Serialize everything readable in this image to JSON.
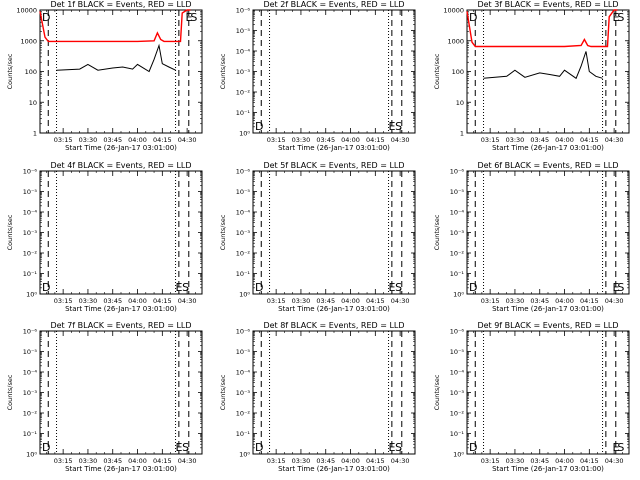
{
  "figure": {
    "xlabel": "Start Time (26-Jan-17 03:01:00)",
    "ylabel": "Counts/sec",
    "xtick_labels": [
      "03:15",
      "03:30",
      "03:45",
      "04:00",
      "04:15",
      "04:30"
    ],
    "colors": {
      "events": "#000000",
      "lld": "#ff0000",
      "axes": "#000000"
    }
  },
  "chart_data": [
    {
      "type": "line",
      "title": "Det 1f BLACK = Events, RED = LLD",
      "yscale": "log",
      "ylim": [
        1,
        10000
      ],
      "ytick_labels": [
        "1",
        "10",
        "100",
        "1000",
        "10000"
      ],
      "xlim": [
        "03:01",
        "04:39"
      ],
      "markers": [
        {
          "label": "D",
          "x": "03:01",
          "pos": "top-left"
        },
        {
          "label": "E",
          "x": "04:29",
          "pos": "top-right"
        },
        {
          "label": "S",
          "x": "04:32",
          "pos": "top-right"
        }
      ],
      "vlines": {
        "dashed": [
          "03:06",
          "04:25",
          "04:31"
        ],
        "dotted": [
          "03:11",
          "04:23"
        ]
      },
      "series": [
        {
          "name": "Events",
          "color": "#000000",
          "x": [
            "03:11",
            "03:25",
            "03:30",
            "03:36",
            "03:45",
            "03:51",
            "03:57",
            "04:00",
            "04:07",
            "04:10",
            "04:13",
            "04:15",
            "04:19",
            "04:23"
          ],
          "y": [
            110,
            120,
            170,
            110,
            130,
            140,
            120,
            170,
            100,
            250,
            700,
            180,
            140,
            110
          ]
        },
        {
          "name": "LLD",
          "color": "#ff0000",
          "x": [
            "03:01",
            "03:04",
            "03:06",
            "03:30",
            "04:00",
            "04:10",
            "04:12",
            "04:14",
            "04:16",
            "04:20",
            "04:26",
            "04:27",
            "04:30",
            "04:32"
          ],
          "y": [
            9000,
            1300,
            950,
            950,
            950,
            1000,
            1800,
            1100,
            950,
            950,
            950,
            8000,
            10000,
            10000
          ]
        }
      ]
    },
    {
      "type": "line",
      "title": "Det 2f BLACK = Events, RED = LLD",
      "yscale": "log",
      "ylim": [
        1,
        1e-06
      ],
      "ytick_labels": [
        "10⁰",
        "10⁻¹",
        "10⁻²",
        "10⁻³",
        "10⁻⁴",
        "10⁻⁵",
        "10⁻⁶"
      ],
      "xlim": [
        "03:01",
        "04:39"
      ],
      "markers": [
        {
          "label": "D",
          "x": "03:01",
          "pos": "bottom-left"
        },
        {
          "label": "E",
          "x": "04:23",
          "pos": "bottom-right"
        },
        {
          "label": "S",
          "x": "04:27",
          "pos": "bottom-right"
        }
      ],
      "vlines": {
        "dashed": [
          "03:06",
          "04:25",
          "04:31"
        ],
        "dotted": [
          "03:11",
          "04:23"
        ]
      },
      "series": []
    },
    {
      "type": "line",
      "title": "Det 3f BLACK = Events, RED = LLD",
      "yscale": "log",
      "ylim": [
        1,
        10000
      ],
      "ytick_labels": [
        "1",
        "10",
        "100",
        "1000",
        "10000"
      ],
      "xlim": [
        "03:01",
        "04:39"
      ],
      "markers": [
        {
          "label": "D",
          "x": "03:01",
          "pos": "top-left"
        },
        {
          "label": "E",
          "x": "04:29",
          "pos": "top-right"
        },
        {
          "label": "S",
          "x": "04:32",
          "pos": "top-right"
        }
      ],
      "vlines": {
        "dashed": [
          "03:06",
          "04:25",
          "04:31"
        ],
        "dotted": [
          "03:11",
          "04:23"
        ]
      },
      "series": [
        {
          "name": "Events",
          "color": "#000000",
          "x": [
            "03:11",
            "03:25",
            "03:30",
            "03:36",
            "03:45",
            "03:51",
            "03:57",
            "04:00",
            "04:07",
            "04:10",
            "04:13",
            "04:15",
            "04:19",
            "04:23"
          ],
          "y": [
            60,
            70,
            110,
            65,
            90,
            80,
            70,
            110,
            60,
            150,
            450,
            100,
            70,
            60
          ]
        },
        {
          "name": "LLD",
          "color": "#ff0000",
          "x": [
            "03:01",
            "03:04",
            "03:06",
            "03:30",
            "04:00",
            "04:10",
            "04:12",
            "04:14",
            "04:16",
            "04:20",
            "04:26",
            "04:27",
            "04:30",
            "04:32"
          ],
          "y": [
            9000,
            900,
            650,
            650,
            650,
            700,
            1100,
            700,
            650,
            650,
            650,
            6000,
            10000,
            10000
          ]
        }
      ]
    },
    {
      "type": "line",
      "title": "Det 4f BLACK = Events, RED = LLD",
      "yscale": "log",
      "ylim": [
        1,
        1e-06
      ],
      "ytick_labels": [
        "10⁰",
        "10⁻¹",
        "10⁻²",
        "10⁻³",
        "10⁻⁴",
        "10⁻⁵",
        "10⁻⁶"
      ],
      "xlim": [
        "03:01",
        "04:39"
      ],
      "markers": [
        {
          "label": "D",
          "x": "03:01",
          "pos": "bottom-left"
        },
        {
          "label": "E",
          "x": "04:23",
          "pos": "bottom-right"
        },
        {
          "label": "S",
          "x": "04:27",
          "pos": "bottom-right"
        }
      ],
      "vlines": {
        "dashed": [
          "03:06",
          "04:25",
          "04:31"
        ],
        "dotted": [
          "03:11",
          "04:23"
        ]
      },
      "series": []
    },
    {
      "type": "line",
      "title": "Det 5f BLACK = Events, RED = LLD",
      "yscale": "log",
      "ylim": [
        1,
        1e-06
      ],
      "ytick_labels": [
        "10⁰",
        "10⁻¹",
        "10⁻²",
        "10⁻³",
        "10⁻⁴",
        "10⁻⁵",
        "10⁻⁶"
      ],
      "xlim": [
        "03:01",
        "04:39"
      ],
      "markers": [
        {
          "label": "D",
          "x": "03:01",
          "pos": "bottom-left"
        },
        {
          "label": "E",
          "x": "04:23",
          "pos": "bottom-right"
        },
        {
          "label": "S",
          "x": "04:27",
          "pos": "bottom-right"
        }
      ],
      "vlines": {
        "dashed": [
          "03:06",
          "04:25",
          "04:31"
        ],
        "dotted": [
          "03:11",
          "04:23"
        ]
      },
      "series": []
    },
    {
      "type": "line",
      "title": "Det 6f BLACK = Events, RED = LLD",
      "yscale": "log",
      "ylim": [
        1,
        1e-06
      ],
      "ytick_labels": [
        "10⁰",
        "10⁻¹",
        "10⁻²",
        "10⁻³",
        "10⁻⁴",
        "10⁻⁵",
        "10⁻⁶"
      ],
      "xlim": [
        "03:01",
        "04:39"
      ],
      "markers": [
        {
          "label": "D",
          "x": "03:01",
          "pos": "bottom-left"
        },
        {
          "label": "E",
          "x": "04:29",
          "pos": "bottom-right"
        },
        {
          "label": "S",
          "x": "04:32",
          "pos": "bottom-right"
        }
      ],
      "vlines": {
        "dashed": [
          "03:06",
          "04:25",
          "04:31"
        ],
        "dotted": [
          "03:11",
          "04:23"
        ]
      },
      "series": []
    },
    {
      "type": "line",
      "title": "Det 7f BLACK = Events, RED = LLD",
      "yscale": "log",
      "ylim": [
        1,
        1e-06
      ],
      "ytick_labels": [
        "10⁰",
        "10⁻¹",
        "10⁻²",
        "10⁻³",
        "10⁻⁴",
        "10⁻⁵",
        "10⁻⁶"
      ],
      "xlim": [
        "03:01",
        "04:39"
      ],
      "markers": [
        {
          "label": "D",
          "x": "03:01",
          "pos": "bottom-left"
        },
        {
          "label": "E",
          "x": "04:23",
          "pos": "bottom-right"
        },
        {
          "label": "S",
          "x": "04:27",
          "pos": "bottom-right"
        }
      ],
      "vlines": {
        "dashed": [
          "03:06",
          "04:25",
          "04:31"
        ],
        "dotted": [
          "03:11",
          "04:23"
        ]
      },
      "series": []
    },
    {
      "type": "line",
      "title": "Det 8f BLACK = Events, RED = LLD",
      "yscale": "log",
      "ylim": [
        1,
        1e-06
      ],
      "ytick_labels": [
        "10⁰",
        "10⁻¹",
        "10⁻²",
        "10⁻³",
        "10⁻⁴",
        "10⁻⁵",
        "10⁻⁶"
      ],
      "xlim": [
        "03:01",
        "04:39"
      ],
      "markers": [
        {
          "label": "D",
          "x": "03:01",
          "pos": "bottom-left"
        },
        {
          "label": "E",
          "x": "04:23",
          "pos": "bottom-right"
        },
        {
          "label": "S",
          "x": "04:27",
          "pos": "bottom-right"
        }
      ],
      "vlines": {
        "dashed": [
          "03:06",
          "04:25",
          "04:31"
        ],
        "dotted": [
          "03:11",
          "04:23"
        ]
      },
      "series": []
    },
    {
      "type": "line",
      "title": "Det 9f BLACK = Events, RED = LLD",
      "yscale": "log",
      "ylim": [
        1,
        1e-06
      ],
      "ytick_labels": [
        "10⁰",
        "10⁻¹",
        "10⁻²",
        "10⁻³",
        "10⁻⁴",
        "10⁻⁵",
        "10⁻⁶"
      ],
      "xlim": [
        "03:01",
        "04:39"
      ],
      "markers": [
        {
          "label": "D",
          "x": "03:01",
          "pos": "bottom-left"
        },
        {
          "label": "E",
          "x": "04:29",
          "pos": "bottom-right"
        },
        {
          "label": "S",
          "x": "04:32",
          "pos": "bottom-right"
        }
      ],
      "vlines": {
        "dashed": [
          "03:06",
          "04:25",
          "04:31"
        ],
        "dotted": [
          "03:11",
          "04:23"
        ]
      },
      "series": []
    }
  ]
}
